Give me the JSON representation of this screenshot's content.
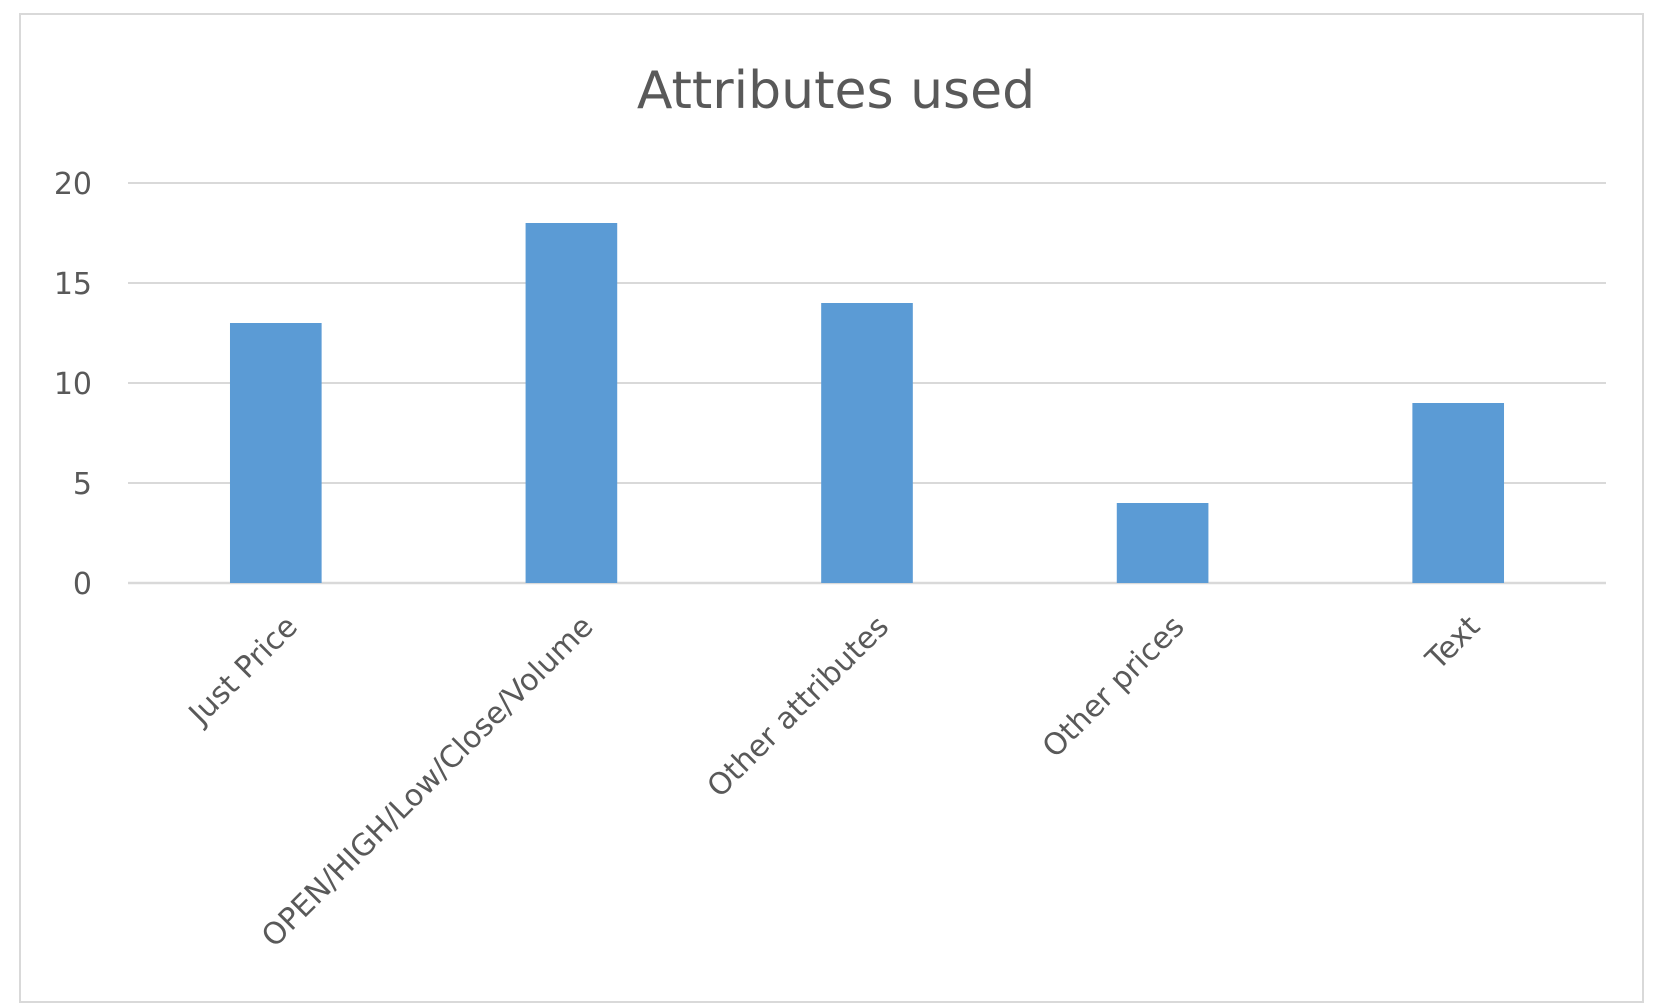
{
  "chart_data": {
    "type": "bar",
    "title": "Attributes used",
    "categories": [
      "Just Price",
      "OPEN/HIGH/Low/Close/Volume",
      "Other attributes",
      "Other prices",
      "Text"
    ],
    "values": [
      13,
      18,
      14,
      4,
      9
    ],
    "ylim": [
      0,
      20
    ],
    "yticks": [
      0,
      5,
      10,
      15,
      20
    ],
    "xlabel": "",
    "ylabel": "",
    "grid": true,
    "legend": "none",
    "bar_color": "#5b9bd5",
    "grid_color": "#d9d9d9",
    "text_color": "#595959"
  }
}
